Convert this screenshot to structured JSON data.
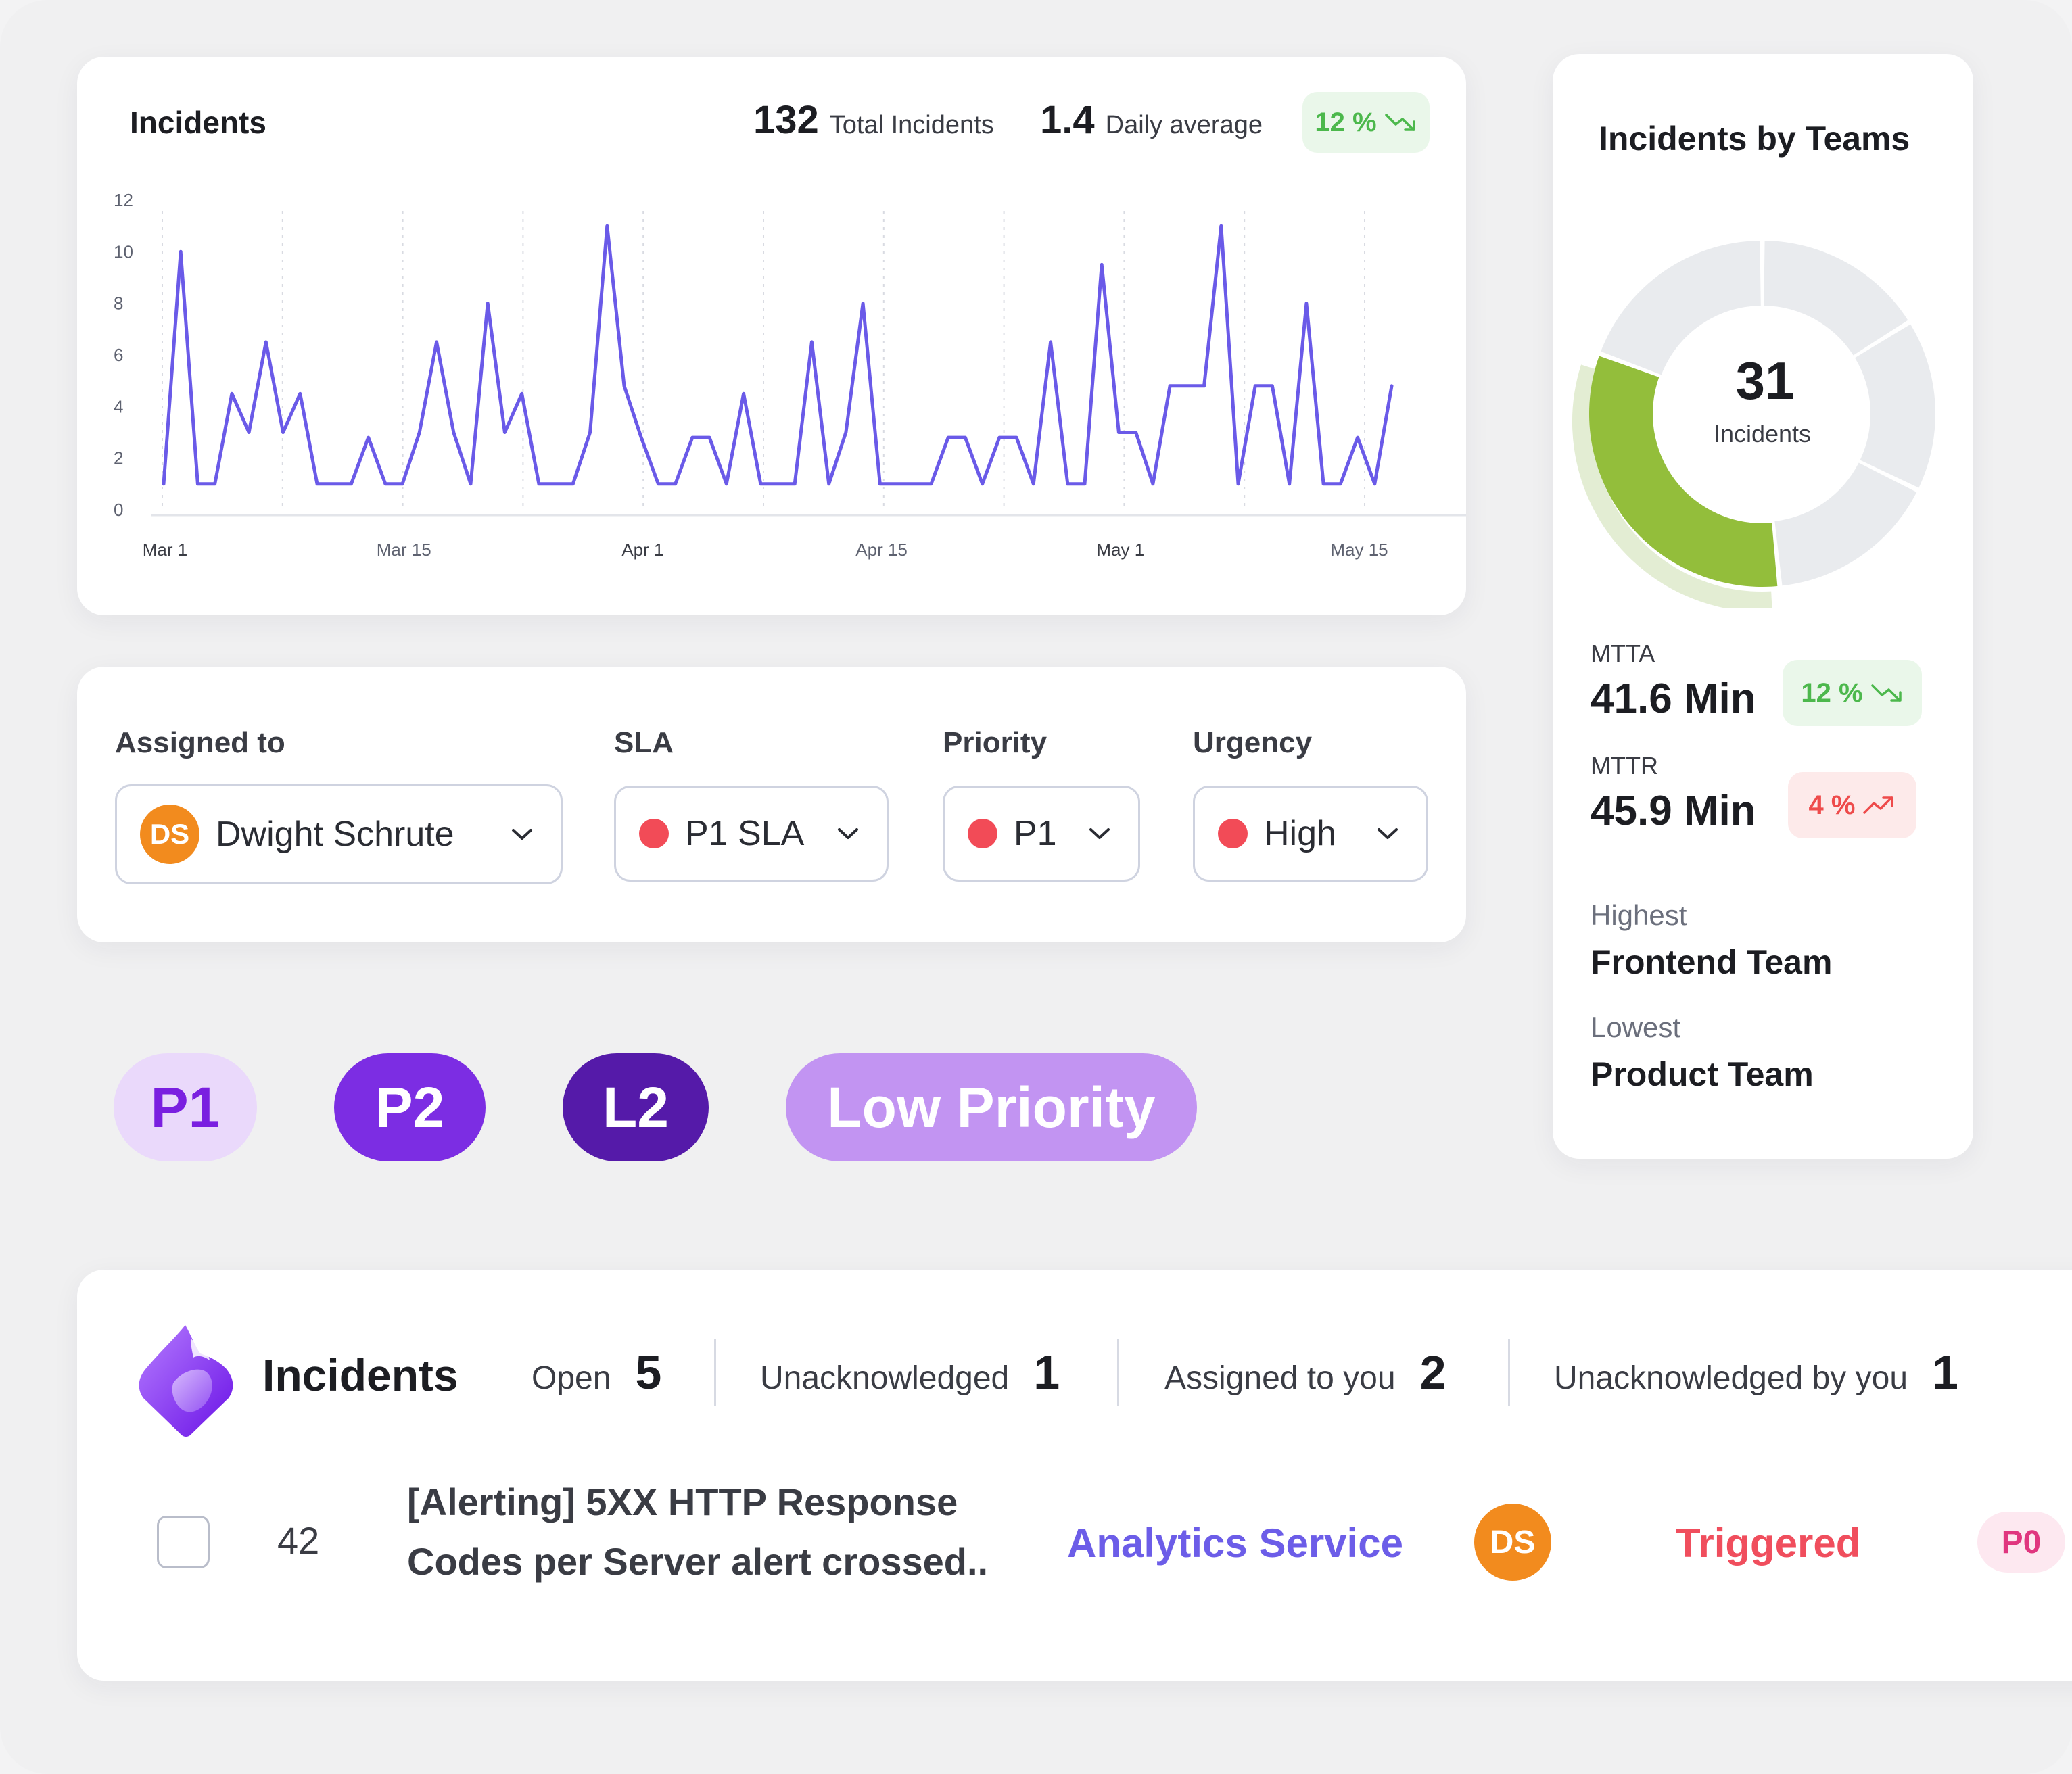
{
  "chart_card": {
    "title": "Incidents",
    "total_value": "132",
    "total_label": "Total Incidents",
    "daily_value": "1.4",
    "daily_label": "Daily average",
    "trend": "12 %",
    "trend_direction": "down",
    "trend_color": "#4cb84c"
  },
  "chart_data": {
    "type": "line",
    "title": "Incidents",
    "xlabel": "",
    "ylabel": "",
    "ylim": [
      0,
      12
    ],
    "y_ticks": [
      "0",
      "2",
      "4",
      "6",
      "8",
      "10",
      "12"
    ],
    "x_tick_labels": [
      "Mar 1",
      "Mar 15",
      "Apr 1",
      "Apr 15",
      "May 1",
      "May 15"
    ],
    "x_tick_emphasis": [
      true,
      false,
      true,
      false,
      true,
      false
    ],
    "line_color": "#6a5ae8",
    "values": [
      1,
      10,
      1,
      1,
      4.5,
      3,
      6.5,
      3,
      4.5,
      1,
      1,
      1,
      2.8,
      1,
      1,
      3,
      6.5,
      3,
      1,
      8,
      3,
      4.5,
      1,
      1,
      1,
      3,
      11,
      4.8,
      2.8,
      1,
      1,
      2.8,
      2.8,
      1,
      4.5,
      1,
      1,
      1,
      6.5,
      1,
      3,
      8,
      1,
      1,
      1,
      1,
      2.8,
      2.8,
      1,
      2.8,
      2.8,
      1,
      6.5,
      1,
      1,
      9.5,
      3,
      3,
      1,
      4.8,
      4.8,
      4.8,
      11,
      1,
      4.8,
      4.8,
      1,
      8,
      1,
      1,
      2.8,
      1,
      4.8
    ]
  },
  "teams_card": {
    "title": "Incidents by Teams",
    "donut_total": "31",
    "donut_label": "Incidents",
    "segments": [
      {
        "name": "segment-1",
        "value": 5,
        "color": "#e9ebee"
      },
      {
        "name": "segment-2",
        "value": 5,
        "color": "#e9ebee"
      },
      {
        "name": "segment-3",
        "value": 5,
        "color": "#e9ebee"
      },
      {
        "name": "segment-4",
        "value": 10,
        "color": "#93be3b"
      },
      {
        "name": "segment-5",
        "value": 6,
        "color": "#e9ebee"
      }
    ],
    "mtta_label": "MTTA",
    "mtta_value": "41.6 Min",
    "mtta_trend": "12 %",
    "mttr_label": "MTTR",
    "mttr_value": "45.9 Min",
    "mttr_trend": "4 %",
    "highest_label": "Highest",
    "highest_team": "Frontend Team",
    "lowest_label": "Lowest",
    "lowest_team": "Product Team"
  },
  "filters": {
    "assigned_label": "Assigned to",
    "assigned_initials": "DS",
    "assigned_value": "Dwight Schrute",
    "sla_label": "SLA",
    "sla_value": "P1 SLA",
    "priority_label": "Priority",
    "priority_value": "P1",
    "urgency_label": "Urgency",
    "urgency_value": "High"
  },
  "pills": [
    {
      "label": "P1",
      "bg": "#ead9fb",
      "fg": "#7a1fe0"
    },
    {
      "label": "P2",
      "bg": "#7c2de3",
      "fg": "#ffffff"
    },
    {
      "label": "L2",
      "bg": "#551aa9",
      "fg": "#ffffff"
    },
    {
      "label": "Low Priority",
      "bg": "#c294f2",
      "fg": "#ffffff"
    }
  ],
  "incidents_table": {
    "title": "Incidents",
    "open_label": "Open",
    "open_count": "5",
    "unack_label": "Unacknowledged",
    "unack_count": "1",
    "assigned_label": "Assigned to you",
    "assigned_count": "2",
    "unack_you_label": "Unacknowledged by you",
    "unack_you_count": "1",
    "row": {
      "id": "42",
      "title_line1": "[Alerting] 5XX HTTP Response",
      "title_line2": "Codes per Server alert crossed..",
      "service": "Analytics Service",
      "assignee_initials": "DS",
      "status": "Triggered",
      "priority": "P0"
    }
  }
}
